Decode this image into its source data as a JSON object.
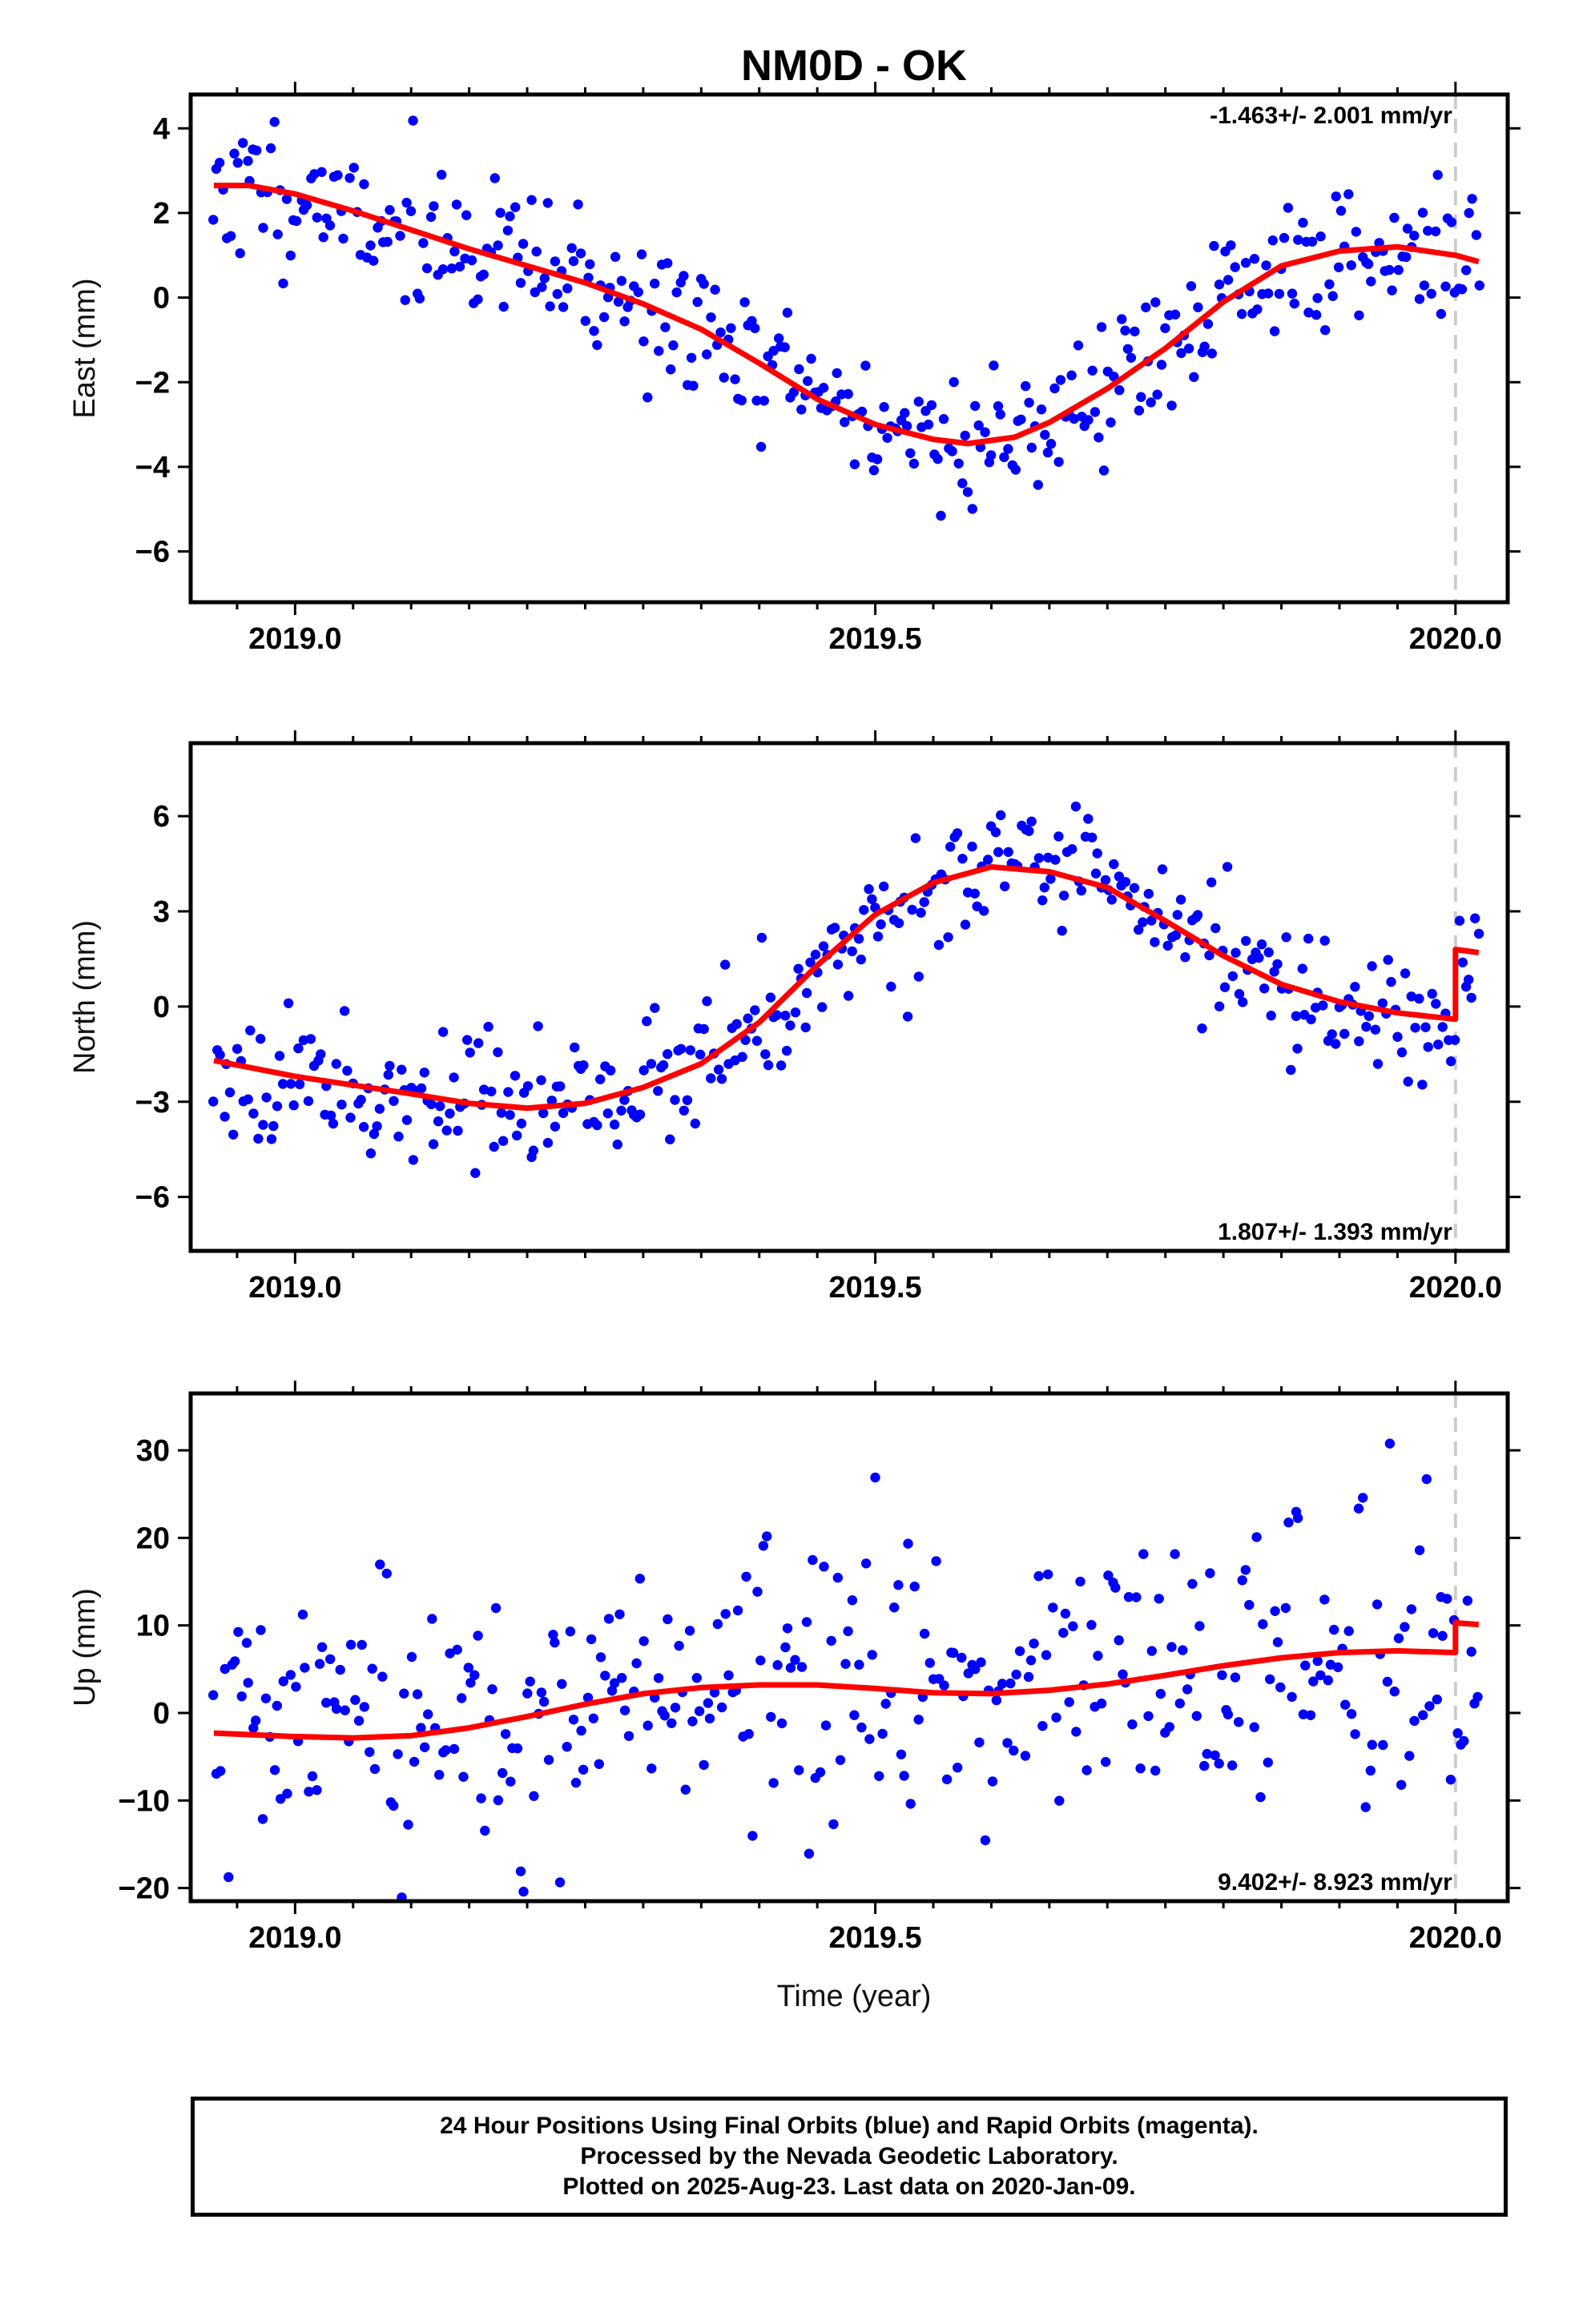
{
  "title": "NM0D - OK",
  "x_label": "Time (year)",
  "footer": {
    "line1": "24 Hour Positions Using Final Orbits (blue) and Rapid Orbits (magenta).",
    "line2": "Processed by the Nevada Geodetic Laboratory.",
    "line3": "Plotted on 2025-Aug-23. Last data on 2020-Jan-09."
  },
  "colors": {
    "points": "#0000ff",
    "fit": "#ff0000",
    "marker_line": "#cccccc"
  },
  "chart_data": [
    {
      "type": "scatter",
      "ylabel": "East (mm)",
      "rate": "-1.463+/- 2.001 mm/yr",
      "rate_position": "top-right",
      "xlim": [
        2018.91,
        2020.045
      ],
      "ylim": [
        -7.2,
        4.8
      ],
      "xticks": [
        2019.0,
        2019.5,
        2020.0
      ],
      "xtick_labels": [
        "2019.0",
        "2019.5",
        "2020.0"
      ],
      "yticks": [
        -6,
        -4,
        -2,
        0,
        2,
        4
      ],
      "ytick_labels": [
        "−6",
        "−4",
        "−2",
        "0",
        "2",
        "4"
      ],
      "marker_x": 2020.0,
      "fit": {
        "x": [
          2018.93,
          2018.96,
          2019.0,
          2019.05,
          2019.1,
          2019.15,
          2019.2,
          2019.25,
          2019.3,
          2019.35,
          2019.4,
          2019.45,
          2019.5,
          2019.55,
          2019.58,
          2019.62,
          2019.65,
          2019.7,
          2019.75,
          2019.8,
          2019.85,
          2019.9,
          2019.95,
          2020.0,
          2020.02
        ],
        "y": [
          2.65,
          2.65,
          2.45,
          2.05,
          1.6,
          1.15,
          0.75,
          0.35,
          -0.15,
          -0.75,
          -1.55,
          -2.4,
          -3.0,
          -3.35,
          -3.45,
          -3.3,
          -2.95,
          -2.15,
          -1.2,
          -0.1,
          0.75,
          1.1,
          1.2,
          1.0,
          0.85
        ]
      },
      "points": {
        "n": 380,
        "seed": 11,
        "x_start": 2018.93,
        "x_end": 2020.02,
        "trend": [
          [
            2018.93,
            2.65
          ],
          [
            2019.0,
            2.45
          ],
          [
            2019.1,
            1.6
          ],
          [
            2019.2,
            0.75
          ],
          [
            2019.3,
            -0.15
          ],
          [
            2019.4,
            -1.55
          ],
          [
            2019.5,
            -3.0
          ],
          [
            2019.58,
            -3.45
          ],
          [
            2019.65,
            -2.95
          ],
          [
            2019.75,
            -1.2
          ],
          [
            2019.85,
            0.75
          ],
          [
            2019.95,
            1.2
          ],
          [
            2020.02,
            0.85
          ]
        ],
        "spread": 0.85
      }
    },
    {
      "type": "scatter",
      "ylabel": "North (mm)",
      "rate": "1.807+/- 1.393 mm/yr",
      "rate_position": "bottom-right",
      "xlim": [
        2018.91,
        2020.045
      ],
      "ylim": [
        -7.7,
        8.3
      ],
      "xticks": [
        2019.0,
        2019.5,
        2020.0
      ],
      "xtick_labels": [
        "2019.0",
        "2019.5",
        "2020.0"
      ],
      "yticks": [
        -6,
        -3,
        0,
        3,
        6
      ],
      "ytick_labels": [
        "−6",
        "−3",
        "0",
        "3",
        "6"
      ],
      "marker_x": 2020.0,
      "fit": {
        "x": [
          2018.93,
          2019.0,
          2019.1,
          2019.15,
          2019.2,
          2019.25,
          2019.3,
          2019.35,
          2019.4,
          2019.45,
          2019.5,
          2019.55,
          2019.6,
          2019.65,
          2019.7,
          2019.75,
          2019.8,
          2019.85,
          2019.9,
          2019.95,
          2020.0,
          2020.0,
          2020.02
        ],
        "y": [
          -1.7,
          -2.2,
          -2.75,
          -3.05,
          -3.2,
          -3.05,
          -2.55,
          -1.8,
          -0.5,
          1.3,
          2.9,
          3.9,
          4.4,
          4.25,
          3.75,
          2.7,
          1.6,
          0.7,
          0.15,
          -0.2,
          -0.4,
          1.8,
          1.7
        ]
      },
      "points": {
        "n": 380,
        "seed": 23,
        "x_start": 2018.93,
        "x_end": 2020.02,
        "trend": [
          [
            2018.93,
            -1.7
          ],
          [
            2019.0,
            -2.2
          ],
          [
            2019.1,
            -2.75
          ],
          [
            2019.2,
            -3.2
          ],
          [
            2019.3,
            -2.55
          ],
          [
            2019.4,
            -0.5
          ],
          [
            2019.5,
            2.9
          ],
          [
            2019.6,
            4.4
          ],
          [
            2019.7,
            3.75
          ],
          [
            2019.8,
            1.6
          ],
          [
            2019.9,
            0.15
          ],
          [
            2020.0,
            -0.4
          ],
          [
            2020.0,
            1.8
          ],
          [
            2020.02,
            1.7
          ]
        ],
        "spread": 1.0
      }
    },
    {
      "type": "scatter",
      "ylabel": "Up (mm)",
      "rate": "9.402+/- 8.923 mm/yr",
      "rate_position": "bottom-right",
      "xlim": [
        2018.91,
        2020.045
      ],
      "ylim": [
        -21.5,
        36.5
      ],
      "xticks": [
        2019.0,
        2019.5,
        2020.0
      ],
      "xtick_labels": [
        "2019.0",
        "2019.5",
        "2020.0"
      ],
      "yticks": [
        -20,
        -10,
        0,
        10,
        20,
        30
      ],
      "ytick_labels": [
        "−20",
        "−10",
        "0",
        "10",
        "20",
        "30"
      ],
      "marker_x": 2020.0,
      "fit": {
        "x": [
          2018.93,
          2019.0,
          2019.05,
          2019.1,
          2019.15,
          2019.2,
          2019.25,
          2019.3,
          2019.35,
          2019.4,
          2019.45,
          2019.5,
          2019.55,
          2019.6,
          2019.65,
          2019.7,
          2019.75,
          2019.8,
          2019.85,
          2019.9,
          2019.95,
          2020.0,
          2020.0,
          2020.02
        ],
        "y": [
          -2.3,
          -2.7,
          -2.85,
          -2.6,
          -1.7,
          -0.4,
          1.0,
          2.2,
          2.9,
          3.2,
          3.2,
          2.8,
          2.3,
          2.2,
          2.6,
          3.3,
          4.3,
          5.4,
          6.3,
          6.9,
          7.1,
          6.9,
          10.3,
          10.1
        ]
      },
      "points": {
        "n": 360,
        "seed": 37,
        "x_start": 2018.93,
        "x_end": 2020.02,
        "trend": [
          [
            2018.93,
            -2.3
          ],
          [
            2019.05,
            -2.85
          ],
          [
            2019.2,
            -0.4
          ],
          [
            2019.4,
            3.2
          ],
          [
            2019.6,
            2.2
          ],
          [
            2019.8,
            5.4
          ],
          [
            2020.0,
            6.9
          ],
          [
            2020.0,
            10.3
          ],
          [
            2020.02,
            10.1
          ]
        ],
        "spread": 8.0
      }
    }
  ]
}
